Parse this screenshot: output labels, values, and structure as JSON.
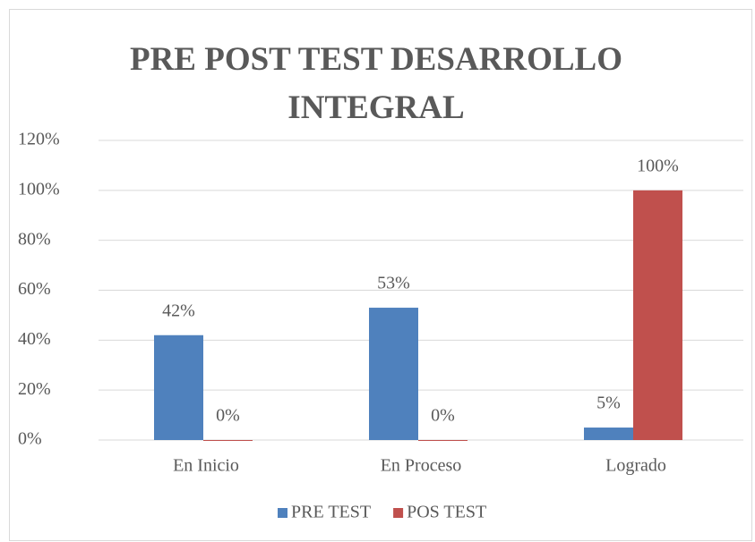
{
  "chart_data": {
    "type": "bar",
    "title": "PRE POST TEST DESARROLLO INTEGRAL",
    "categories": [
      "En Inicio",
      "En Proceso",
      "Logrado"
    ],
    "series": [
      {
        "name": "PRE TEST",
        "color": "#4f81bd",
        "values": [
          42,
          53,
          5
        ],
        "value_labels": [
          "42%",
          "53%",
          "5%"
        ]
      },
      {
        "name": "POS TEST",
        "color": "#c0504d",
        "values": [
          0,
          0,
          100
        ],
        "value_labels": [
          "0%",
          "0%",
          "100%"
        ]
      }
    ],
    "ylim": [
      0,
      120
    ],
    "yticks": [
      {
        "value": 0,
        "label": "0%"
      },
      {
        "value": 20,
        "label": "20%"
      },
      {
        "value": 40,
        "label": "40%"
      },
      {
        "value": 60,
        "label": "60%"
      },
      {
        "value": 80,
        "label": "80%"
      },
      {
        "value": 100,
        "label": "100%"
      },
      {
        "value": 120,
        "label": "120%"
      }
    ],
    "grid": true,
    "legend": "bottom"
  }
}
